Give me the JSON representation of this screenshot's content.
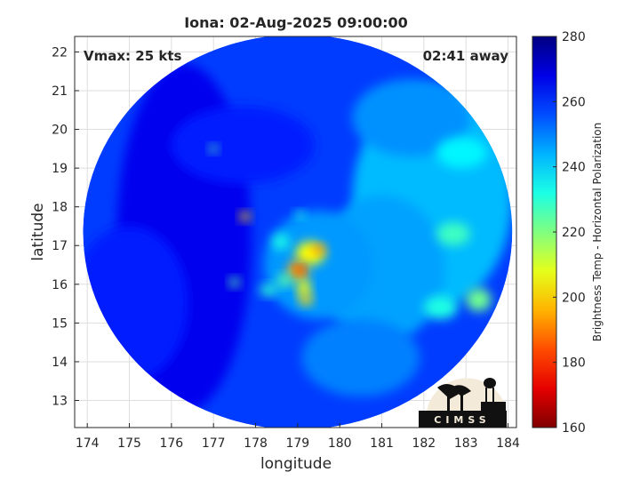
{
  "chart_data": {
    "type": "heatmap",
    "title": "Iona: 02-Aug-2025 09:00:00",
    "xlabel": "longitude",
    "ylabel": "latitude",
    "xlim": [
      173.7,
      184.2
    ],
    "ylim": [
      12.3,
      22.4
    ],
    "xticks": [
      "174",
      "175",
      "176",
      "177",
      "178",
      "179",
      "180",
      "181",
      "182",
      "183",
      "184"
    ],
    "yticks": [
      "13",
      "14",
      "15",
      "16",
      "17",
      "18",
      "19",
      "20",
      "21",
      "22"
    ],
    "grid": true,
    "annotations": {
      "vmax": "Vmax: 25 kts",
      "away": "02:41 away"
    },
    "colorbar": {
      "label": "Brightness Temp - Horizontal Polarization",
      "range": [
        160,
        280
      ],
      "ticks": [
        "160",
        "180",
        "200",
        "220",
        "240",
        "260",
        "280"
      ],
      "colormap": "jet"
    },
    "swath": {
      "center_lon": 179.0,
      "center_lat": 17.35,
      "radius_deg": 5.1
    },
    "background_temp": 258,
    "regions": [
      {
        "lon": 176.3,
        "lat": 17.2,
        "rlon": 1.6,
        "rlat": 4.5,
        "temp": 267
      },
      {
        "lon": 175.0,
        "lat": 15.5,
        "rlon": 1.4,
        "rlat": 2.0,
        "temp": 262
      },
      {
        "lon": 177.7,
        "lat": 19.6,
        "rlon": 1.7,
        "rlat": 1.0,
        "temp": 262
      },
      {
        "lon": 182.2,
        "lat": 18.2,
        "rlon": 1.9,
        "rlat": 2.8,
        "temp": 243
      },
      {
        "lon": 181.0,
        "lat": 16.4,
        "rlon": 1.5,
        "rlat": 1.9,
        "temp": 246
      },
      {
        "lon": 179.5,
        "lat": 16.5,
        "rlon": 1.3,
        "rlat": 1.4,
        "temp": 247
      },
      {
        "lon": 181.7,
        "lat": 20.3,
        "rlon": 1.4,
        "rlat": 1.0,
        "temp": 248
      },
      {
        "lon": 180.5,
        "lat": 14.1,
        "rlon": 1.4,
        "rlat": 1.0,
        "temp": 250
      },
      {
        "lon": 182.9,
        "lat": 19.4,
        "rlon": 0.6,
        "rlat": 0.4,
        "temp": 236
      },
      {
        "lon": 182.7,
        "lat": 17.3,
        "rlon": 0.4,
        "rlat": 0.3,
        "temp": 228
      },
      {
        "lon": 183.3,
        "lat": 15.6,
        "rlon": 0.3,
        "rlat": 0.3,
        "temp": 222
      },
      {
        "lon": 182.4,
        "lat": 15.4,
        "rlon": 0.4,
        "rlat": 0.3,
        "temp": 232
      },
      {
        "lon": 179.3,
        "lat": 16.8,
        "rlon": 0.35,
        "rlat": 0.3,
        "temp": 205
      },
      {
        "lon": 179.5,
        "lat": 16.9,
        "rlon": 0.15,
        "rlat": 0.12,
        "temp": 190
      },
      {
        "lon": 179.0,
        "lat": 16.35,
        "rlon": 0.25,
        "rlat": 0.25,
        "temp": 195
      },
      {
        "lon": 179.05,
        "lat": 16.35,
        "rlon": 0.1,
        "rlat": 0.1,
        "temp": 172
      },
      {
        "lon": 179.15,
        "lat": 15.9,
        "rlon": 0.15,
        "rlat": 0.25,
        "temp": 205
      },
      {
        "lon": 179.2,
        "lat": 15.6,
        "rlon": 0.15,
        "rlat": 0.15,
        "temp": 200
      },
      {
        "lon": 177.75,
        "lat": 17.75,
        "rlon": 0.12,
        "rlat": 0.12,
        "temp": 200
      },
      {
        "lon": 177.5,
        "lat": 16.05,
        "rlon": 0.12,
        "rlat": 0.12,
        "temp": 225
      },
      {
        "lon": 178.3,
        "lat": 15.85,
        "rlon": 0.2,
        "rlat": 0.15,
        "temp": 230
      },
      {
        "lon": 178.7,
        "lat": 16.1,
        "rlon": 0.2,
        "rlat": 0.15,
        "temp": 225
      },
      {
        "lon": 177.0,
        "lat": 19.5,
        "rlon": 0.1,
        "rlat": 0.1,
        "temp": 225
      },
      {
        "lon": 178.6,
        "lat": 17.1,
        "rlon": 0.2,
        "rlat": 0.2,
        "temp": 232
      },
      {
        "lon": 179.05,
        "lat": 17.8,
        "rlon": 0.12,
        "rlat": 0.1,
        "temp": 232
      }
    ]
  },
  "logo": {
    "text": "CIMSS"
  }
}
